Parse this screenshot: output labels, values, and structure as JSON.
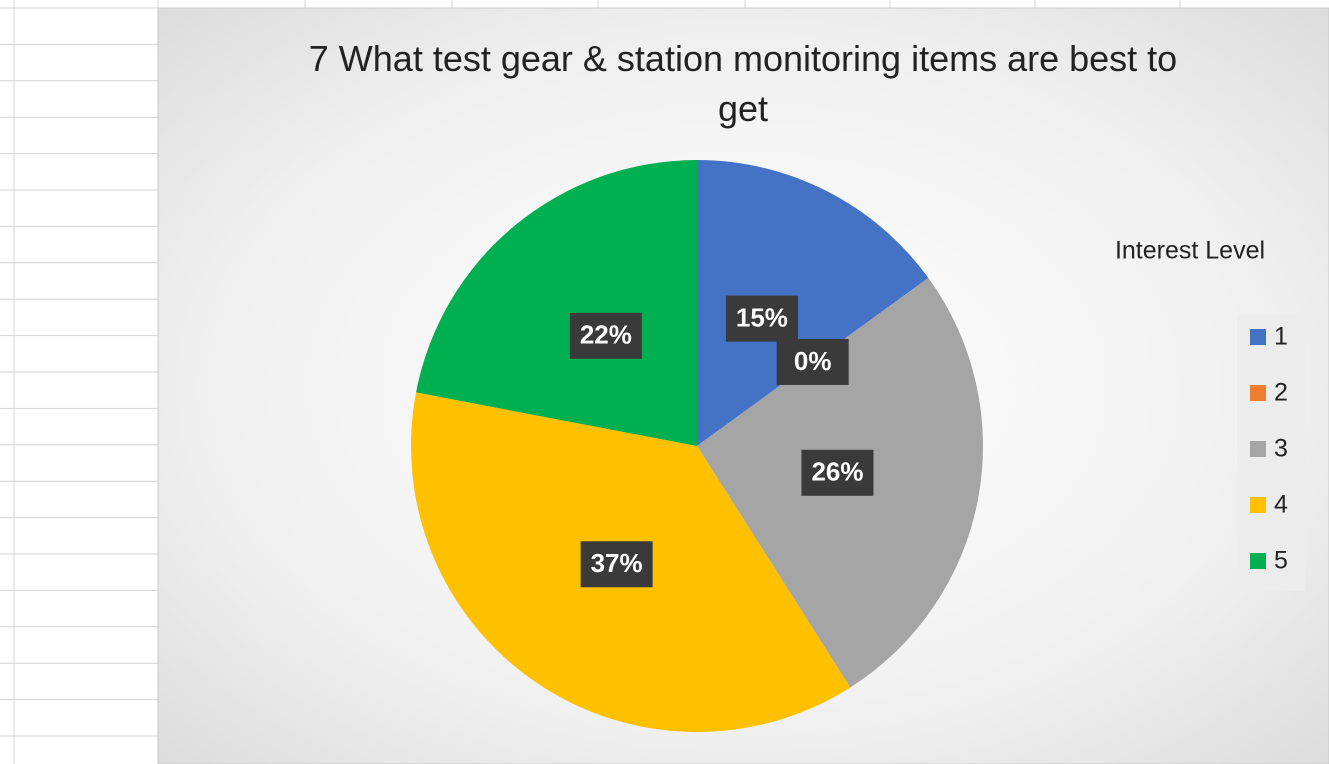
{
  "chart_data": {
    "type": "pie",
    "title": "7 What test gear & station monitoring items are best to get",
    "legend_title": "Interest Level",
    "categories": [
      "1",
      "2",
      "3",
      "4",
      "5"
    ],
    "values": [
      15,
      0,
      26,
      37,
      22
    ],
    "value_labels": [
      "15%",
      "0%",
      "26%",
      "37%",
      "22%"
    ],
    "colors": [
      "#4472c4",
      "#ed7d31",
      "#a5a5a5",
      "#ffc000",
      "#00b050"
    ],
    "legend": "right"
  }
}
